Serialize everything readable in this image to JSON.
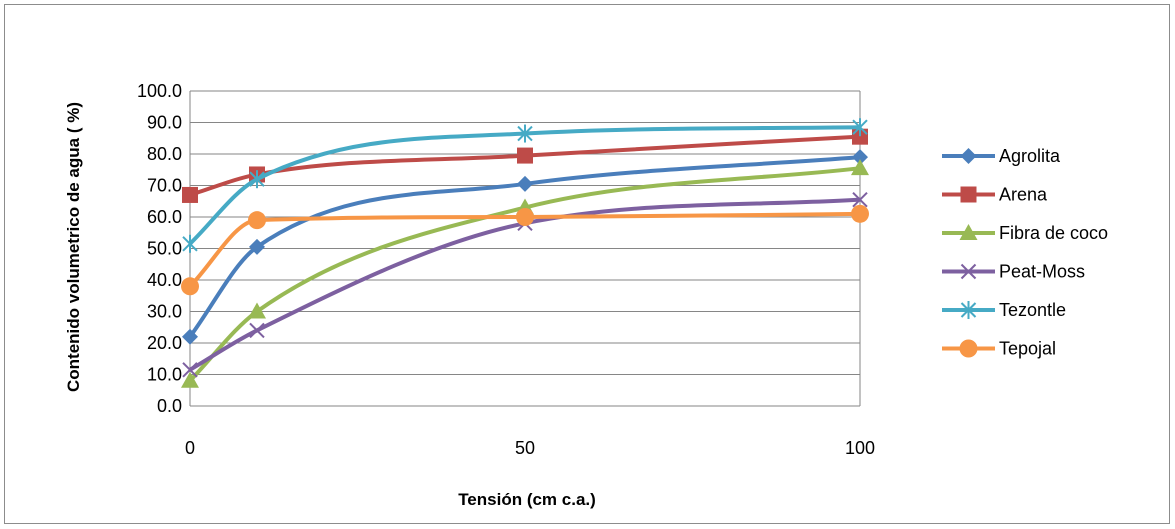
{
  "chart_data": {
    "type": "line",
    "title": "",
    "xlabel": "Tensión (cm  c.a.)",
    "ylabel": "Contenido volumetrico de agua ( %)",
    "x": [
      0,
      10,
      50,
      100
    ],
    "xticks": [
      "0",
      "50",
      "100"
    ],
    "xlim": [
      0,
      100
    ],
    "ylim": [
      0,
      100
    ],
    "yticks": [
      "0.0",
      "10.0",
      "20.0",
      "30.0",
      "40.0",
      "50.0",
      "60.0",
      "70.0",
      "80.0",
      "90.0",
      "100.0"
    ],
    "grid": true,
    "smooth": true,
    "legend_position": "right",
    "series": [
      {
        "name": "Agrolita",
        "values": [
          22.0,
          50.5,
          70.5,
          79.0
        ],
        "color": "#4a7ebb",
        "marker": "diamond"
      },
      {
        "name": "Arena",
        "values": [
          67.0,
          73.5,
          79.5,
          85.5
        ],
        "color": "#be4b48",
        "marker": "square"
      },
      {
        "name": "Fibra de coco",
        "values": [
          8.0,
          30.0,
          63.0,
          75.5
        ],
        "color": "#98b954",
        "marker": "triangle"
      },
      {
        "name": "Peat-Moss",
        "values": [
          11.5,
          24.0,
          58.0,
          65.5
        ],
        "color": "#7d60a0",
        "marker": "x"
      },
      {
        "name": "Tezontle",
        "values": [
          51.5,
          72.0,
          86.5,
          88.5
        ],
        "color": "#46aac5",
        "marker": "star"
      },
      {
        "name": "Tepojal",
        "values": [
          38.0,
          59.0,
          60.0,
          61.0
        ],
        "color": "#f79646",
        "marker": "circle"
      }
    ]
  }
}
